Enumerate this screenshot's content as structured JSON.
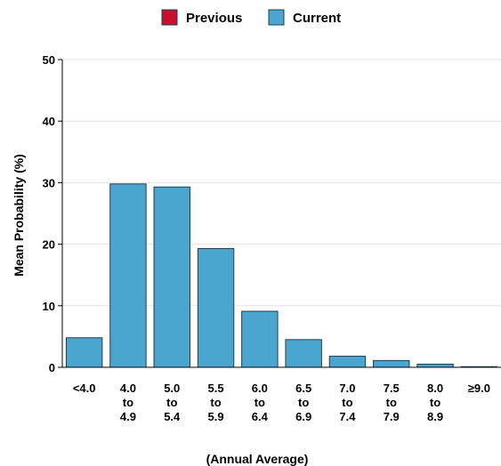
{
  "chart_data": {
    "type": "bar",
    "categories": [
      [
        "<4.0"
      ],
      [
        "4.0",
        "to",
        "4.9"
      ],
      [
        "5.0",
        "to",
        "5.4"
      ],
      [
        "5.5",
        "to",
        "5.9"
      ],
      [
        "6.0",
        "to",
        "6.4"
      ],
      [
        "6.5",
        "to",
        "6.9"
      ],
      [
        "7.0",
        "to",
        "7.4"
      ],
      [
        "7.5",
        "to",
        "7.9"
      ],
      [
        "8.0",
        "to",
        "8.9"
      ],
      [
        "≥9.0"
      ]
    ],
    "series": [
      {
        "name": "Previous",
        "color": "#c8102e",
        "values": [
          0,
          0,
          0,
          0,
          0,
          0,
          0,
          0,
          0,
          0
        ]
      },
      {
        "name": "Current",
        "color": "#4aa6cf",
        "values": [
          4.8,
          29.8,
          29.3,
          19.3,
          9.1,
          4.5,
          1.8,
          1.1,
          0.5,
          0.1
        ]
      }
    ],
    "xlabel": "(Annual Average)",
    "ylabel": "Mean Probability (%)",
    "ylim": [
      0,
      50
    ],
    "yticks": [
      0,
      10,
      20,
      30,
      40,
      50
    ],
    "grid": true,
    "legend": "top-center"
  }
}
